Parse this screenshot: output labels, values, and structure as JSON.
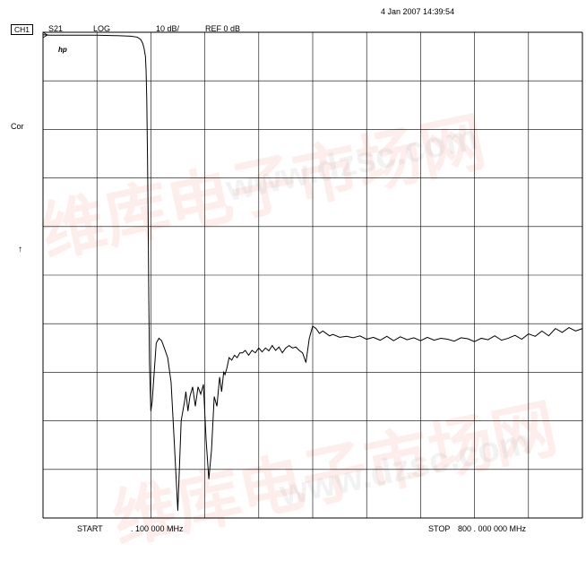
{
  "header": {
    "date": "4 Jan 2007  14:39:54",
    "channel": "CH1",
    "parameter": "S21",
    "format": "LOG",
    "scale": "10 dB/",
    "reference": "REF 0 dB"
  },
  "side": {
    "correction": "Cor",
    "ref_marker": "↑"
  },
  "footer": {
    "start_label": "START",
    "start_value": ". 100   000   MHz",
    "stop_label": "STOP",
    "stop_value": "800  . 000   000   MHz"
  },
  "logo": "hp",
  "watermark": {
    "chinese": "维库电子市场网",
    "url": "www.dzsc.com"
  },
  "colors": {
    "trace": "#000000",
    "grid": "#000000",
    "background": "#ffffff"
  },
  "chart_data": {
    "type": "line",
    "title": "",
    "xlabel": "",
    "ylabel": "",
    "x_unit": "MHz",
    "y_unit": "dB",
    "xlim": [
      0.1,
      800
    ],
    "ylim": [
      -100,
      0
    ],
    "x_divisions": 10,
    "y_divisions": 10,
    "grid": true,
    "series": [
      {
        "x": [
          0.1,
          10,
          40,
          80,
          110,
          130,
          140,
          145,
          148,
          150,
          152,
          153,
          154,
          155,
          156,
          157,
          158,
          159,
          160,
          162,
          165,
          168,
          172,
          176,
          180,
          185,
          190,
          195,
          200,
          205,
          210,
          212,
          215,
          218,
          222,
          226,
          230,
          234,
          238,
          242,
          246,
          250,
          254,
          258,
          262,
          265,
          268,
          270,
          273,
          276,
          280,
          284,
          288,
          292,
          296,
          300,
          305,
          310,
          315,
          320,
          325,
          330,
          335,
          340,
          345,
          350,
          355,
          360,
          365,
          370,
          375,
          380,
          385,
          390,
          395,
          400,
          405,
          410,
          415,
          418,
          420,
          425,
          430,
          440,
          450,
          460,
          470,
          480,
          490,
          500,
          510,
          520,
          530,
          540,
          550,
          560,
          570,
          580,
          590,
          600,
          610,
          620,
          630,
          640,
          650,
          660,
          670,
          680,
          690,
          700,
          710,
          720,
          730,
          740,
          750,
          760,
          770,
          780,
          790,
          800
        ],
        "y": [
          -0.5,
          -0.6,
          -0.6,
          -0.6,
          -0.7,
          -0.8,
          -1.0,
          -1.5,
          -2.3,
          -3.3,
          -5.0,
          -8.0,
          -14.0,
          -25.0,
          -38.0,
          -55.0,
          -68.0,
          -73.0,
          -78.0,
          -76.0,
          -70.0,
          -64.0,
          -63.0,
          -63.5,
          -65.0,
          -67.0,
          -72.0,
          -85.0,
          -98.5,
          -80.0,
          -76.0,
          -74.0,
          -78.0,
          -75.0,
          -73.0,
          -77.0,
          -73.0,
          -74.5,
          -72.5,
          -84.0,
          -92.0,
          -86.0,
          -75.0,
          -77.0,
          -71.0,
          -74.0,
          -70.0,
          -70.5,
          -69.0,
          -67.0,
          -67.5,
          -66.5,
          -67.0,
          -66.0,
          -66.0,
          -65.5,
          -66.5,
          -65.5,
          -66.0,
          -65.0,
          -65.8,
          -65.0,
          -65.6,
          -64.5,
          -65.5,
          -64.8,
          -66.0,
          -65.0,
          -64.5,
          -65.0,
          -64.8,
          -65.5,
          -66.0,
          -68.0,
          -63.0,
          -60.5,
          -61.0,
          -62.0,
          -61.5,
          -61.8,
          -62.0,
          -62.5,
          -62.2,
          -62.8,
          -62.6,
          -62.9,
          -62.5,
          -63.2,
          -62.8,
          -63.4,
          -62.6,
          -63.5,
          -62.7,
          -63.3,
          -62.9,
          -63.5,
          -62.8,
          -63.4,
          -63.0,
          -63.2,
          -63.6,
          -62.9,
          -63.1,
          -63.7,
          -63.0,
          -63.3,
          -62.5,
          -63.4,
          -63.0,
          -62.4,
          -63.2,
          -62.1,
          -62.6,
          -61.5,
          -62.5,
          -61.0,
          -61.8,
          -60.8,
          -61.5,
          -61.0
        ]
      }
    ]
  }
}
